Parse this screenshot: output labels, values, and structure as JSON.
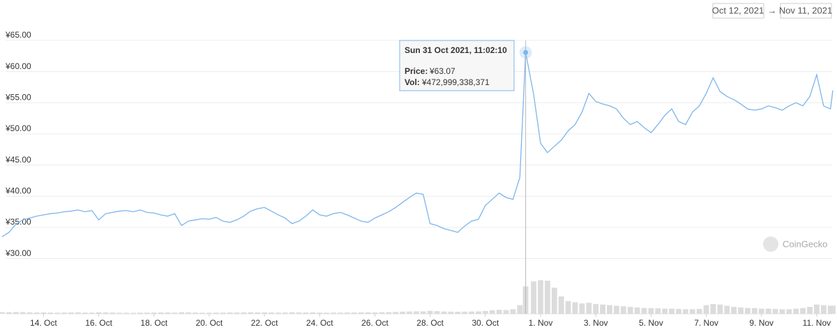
{
  "chart_data": {
    "type": "line",
    "range": {
      "from": "Oct 12, 2021",
      "arrow": "→",
      "to": "Nov 11, 2021"
    },
    "watermark": "CoinGecko",
    "tooltip": {
      "title": "Sun 31 Oct 2021, 11:02:10",
      "price_label": "Price:",
      "price": "¥63.07",
      "vol_label": "Vol:",
      "vol": "¥472,999,338,371"
    },
    "x": [
      "2021-10-12T12:00",
      "2021-10-12T18:00",
      "2021-10-13T00:00",
      "2021-10-13T06:00",
      "2021-10-13T12:00",
      "2021-10-13T18:00",
      "2021-10-14T00:00",
      "2021-10-14T06:00",
      "2021-10-14T12:00",
      "2021-10-14T18:00",
      "2021-10-15T00:00",
      "2021-10-15T06:00",
      "2021-10-15T12:00",
      "2021-10-15T18:00",
      "2021-10-16T00:00",
      "2021-10-16T06:00",
      "2021-10-16T12:00",
      "2021-10-16T18:00",
      "2021-10-17T00:00",
      "2021-10-17T06:00",
      "2021-10-17T12:00",
      "2021-10-17T18:00",
      "2021-10-18T00:00",
      "2021-10-18T06:00",
      "2021-10-18T12:00",
      "2021-10-18T18:00",
      "2021-10-19T00:00",
      "2021-10-19T06:00",
      "2021-10-19T12:00",
      "2021-10-19T18:00",
      "2021-10-20T00:00",
      "2021-10-20T06:00",
      "2021-10-20T12:00",
      "2021-10-20T18:00",
      "2021-10-21T00:00",
      "2021-10-21T06:00",
      "2021-10-21T12:00",
      "2021-10-21T18:00",
      "2021-10-22T00:00",
      "2021-10-22T06:00",
      "2021-10-22T12:00",
      "2021-10-22T18:00",
      "2021-10-23T00:00",
      "2021-10-23T06:00",
      "2021-10-23T12:00",
      "2021-10-23T18:00",
      "2021-10-24T00:00",
      "2021-10-24T06:00",
      "2021-10-24T12:00",
      "2021-10-24T18:00",
      "2021-10-25T00:00",
      "2021-10-25T06:00",
      "2021-10-25T12:00",
      "2021-10-25T18:00",
      "2021-10-26T00:00",
      "2021-10-26T06:00",
      "2021-10-26T12:00",
      "2021-10-26T18:00",
      "2021-10-27T00:00",
      "2021-10-27T06:00",
      "2021-10-27T12:00",
      "2021-10-27T18:00",
      "2021-10-28T00:00",
      "2021-10-28T06:00",
      "2021-10-28T12:00",
      "2021-10-28T18:00",
      "2021-10-29T00:00",
      "2021-10-29T06:00",
      "2021-10-29T12:00",
      "2021-10-29T18:00",
      "2021-10-30T00:00",
      "2021-10-30T06:00",
      "2021-10-30T12:00",
      "2021-10-30T18:00",
      "2021-10-31T00:00",
      "2021-10-31T06:00",
      "2021-10-31T11:02:10",
      "2021-10-31T18:00",
      "2021-11-01T00:00",
      "2021-11-01T06:00",
      "2021-11-01T12:00",
      "2021-11-01T18:00",
      "2021-11-02T00:00",
      "2021-11-02T06:00",
      "2021-11-02T12:00",
      "2021-11-02T18:00",
      "2021-11-03T00:00",
      "2021-11-03T06:00",
      "2021-11-03T12:00",
      "2021-11-03T18:00",
      "2021-11-04T00:00",
      "2021-11-04T06:00",
      "2021-11-04T12:00",
      "2021-11-04T18:00",
      "2021-11-05T00:00",
      "2021-11-05T06:00",
      "2021-11-05T12:00",
      "2021-11-05T18:00",
      "2021-11-06T00:00",
      "2021-11-06T06:00",
      "2021-11-06T12:00",
      "2021-11-06T18:00",
      "2021-11-07T00:00",
      "2021-11-07T06:00",
      "2021-11-07T12:00",
      "2021-11-07T18:00",
      "2021-11-08T00:00",
      "2021-11-08T06:00",
      "2021-11-08T12:00",
      "2021-11-08T18:00",
      "2021-11-09T00:00",
      "2021-11-09T06:00",
      "2021-11-09T12:00",
      "2021-11-09T18:00",
      "2021-11-10T00:00",
      "2021-11-10T06:00",
      "2021-11-10T12:00",
      "2021-11-10T18:00",
      "2021-11-11T00:00",
      "2021-11-11T06:00",
      "2021-11-11T12:00",
      "2021-11-11T14:00"
    ],
    "series": [
      {
        "color": "#7cb5ec",
        "values": [
          33.5,
          34.2,
          35.5,
          36.2,
          36.5,
          36.8,
          37.0,
          37.2,
          37.3,
          37.5,
          37.6,
          37.8,
          37.5,
          37.7,
          36.2,
          37.2,
          37.4,
          37.6,
          37.7,
          37.5,
          37.8,
          37.4,
          37.3,
          37.0,
          36.8,
          37.2,
          35.3,
          36.0,
          36.2,
          36.4,
          36.3,
          36.6,
          36.0,
          35.8,
          36.2,
          36.8,
          37.6,
          38.0,
          38.2,
          37.6,
          37.0,
          36.5,
          35.6,
          36.0,
          36.8,
          37.8,
          37.0,
          36.8,
          37.2,
          37.4,
          37.0,
          36.5,
          36.0,
          35.8,
          36.5,
          37.0,
          37.5,
          38.2,
          39.0,
          39.8,
          40.5,
          40.3,
          35.6,
          35.3,
          34.8,
          34.5,
          34.2,
          35.2,
          36.0,
          36.3,
          38.5,
          39.5,
          40.5,
          39.8,
          39.5,
          43.0,
          63.07,
          56.3,
          48.5,
          47.0,
          48.0,
          49.0,
          50.5,
          51.5,
          53.5,
          56.5,
          55.2,
          54.8,
          54.5,
          54.0,
          52.5,
          51.5,
          52.0,
          51.0,
          50.2,
          51.5,
          53.0,
          54.0,
          52.0,
          51.5,
          53.5,
          54.5,
          56.5,
          59.0,
          56.8,
          56.0,
          55.5,
          54.8,
          54.0,
          53.8,
          54.0,
          54.5,
          54.2,
          53.8,
          54.5,
          55.0,
          54.5,
          56.0,
          59.5,
          54.5,
          54.0,
          57.0
        ]
      },
      {
        "color": "#dcdcdc",
        "axis": "y2",
        "values": [
          30000000000.0,
          28000000000.0,
          32000000000.0,
          30000000000.0,
          26000000000.0,
          24000000000.0,
          25000000000.0,
          22000000000.0,
          20000000000.0,
          23000000000.0,
          24000000000.0,
          26000000000.0,
          22000000000.0,
          21000000000.0,
          28000000000.0,
          25000000000.0,
          22000000000.0,
          20000000000.0,
          19000000000.0,
          18000000000.0,
          20000000000.0,
          21000000000.0,
          22000000000.0,
          24000000000.0,
          23000000000.0,
          21000000000.0,
          29000000000.0,
          26000000000.0,
          22000000000.0,
          20000000000.0,
          20000000000.0,
          21000000000.0,
          22000000000.0,
          24000000000.0,
          23000000000.0,
          25000000000.0,
          28000000000.0,
          26000000000.0,
          25000000000.0,
          24000000000.0,
          22000000000.0,
          23000000000.0,
          28000000000.0,
          25000000000.0,
          24000000000.0,
          26000000000.0,
          22000000000.0,
          20000000000.0,
          21000000000.0,
          22000000000.0,
          23000000000.0,
          24000000000.0,
          26000000000.0,
          27000000000.0,
          26000000000.0,
          28000000000.0,
          30000000000.0,
          34000000000.0,
          38000000000.0,
          40000000000.0,
          44000000000.0,
          42000000000.0,
          52000000000.0,
          46000000000.0,
          40000000000.0,
          38000000000.0,
          36000000000.0,
          38000000000.0,
          40000000000.0,
          42000000000.0,
          50000000000.0,
          60000000000.0,
          70000000000.0,
          65000000000.0,
          80000000000.0,
          150000000000.0,
          472999338371,
          560000000000.0,
          580000000000.0,
          570000000000.0,
          450000000000.0,
          300000000000.0,
          220000000000.0,
          200000000000.0,
          180000000000.0,
          190000000000.0,
          170000000000.0,
          160000000000.0,
          150000000000.0,
          140000000000.0,
          130000000000.0,
          120000000000.0,
          110000000000.0,
          100000000000.0,
          100000000000.0,
          95000000000.0,
          90000000000.0,
          90000000000.0,
          85000000000.0,
          80000000000.0,
          80000000000.0,
          85000000000.0,
          150000000000.0,
          170000000000.0,
          160000000000.0,
          140000000000.0,
          120000000000.0,
          110000000000.0,
          100000000000.0,
          100000000000.0,
          90000000000.0,
          90000000000.0,
          85000000000.0,
          80000000000.0,
          80000000000.0,
          90000000000.0,
          100000000000.0,
          120000000000.0,
          160000000000.0,
          150000000000.0,
          140000000000.0,
          140000000000.0
        ]
      }
    ],
    "xlim": [
      "2021-10-12T12:00",
      "2021-11-11T14:00"
    ],
    "xticks": [
      {
        "value": "2021-10-14",
        "label": "14. Oct"
      },
      {
        "value": "2021-10-16",
        "label": "16. Oct"
      },
      {
        "value": "2021-10-18",
        "label": "18. Oct"
      },
      {
        "value": "2021-10-20",
        "label": "20. Oct"
      },
      {
        "value": "2021-10-22",
        "label": "22. Oct"
      },
      {
        "value": "2021-10-24",
        "label": "24. Oct"
      },
      {
        "value": "2021-10-26",
        "label": "26. Oct"
      },
      {
        "value": "2021-10-28",
        "label": "28. Oct"
      },
      {
        "value": "2021-10-30",
        "label": "30. Oct"
      },
      {
        "value": "2021-11-01",
        "label": "1. Nov"
      },
      {
        "value": "2021-11-03",
        "label": "3. Nov"
      },
      {
        "value": "2021-11-05",
        "label": "5. Nov"
      },
      {
        "value": "2021-11-07",
        "label": "7. Nov"
      },
      {
        "value": "2021-11-09",
        "label": "9. Nov"
      },
      {
        "value": "2021-11-11",
        "label": "11. Nov"
      }
    ],
    "ylim": [
      20,
      66
    ],
    "yticks": [
      {
        "value": 30,
        "label": "¥30.00"
      },
      {
        "value": 35,
        "label": "¥35.00"
      },
      {
        "value": 40,
        "label": "¥40.00"
      },
      {
        "value": 45,
        "label": "¥45.00"
      },
      {
        "value": 50,
        "label": "¥50.00"
      },
      {
        "value": 55,
        "label": "¥55.00"
      },
      {
        "value": 60,
        "label": "¥60.00"
      },
      {
        "value": 65,
        "label": "¥65.00"
      }
    ],
    "y2lim": [
      0,
      600000000000
    ],
    "grid": true
  }
}
